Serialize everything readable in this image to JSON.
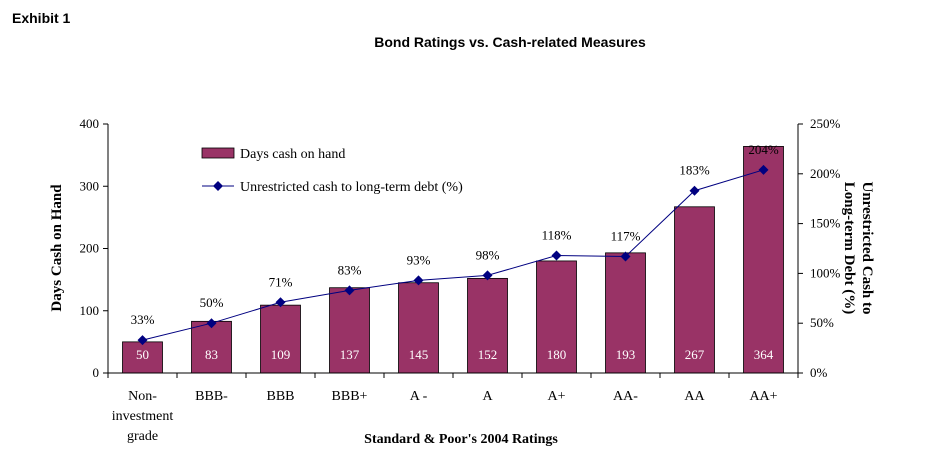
{
  "exhibit_label": "Exhibit 1",
  "chart_data": {
    "type": "bar",
    "title": "Bond Ratings vs. Cash-related Measures",
    "xlabel": "Standard & Poor's 2004 Ratings",
    "ylabel": "Days Cash on Hand",
    "y2label_line1": "Unrestricted Cash to",
    "y2label_line2": "Long-term Debt (%)",
    "categories": [
      [
        "Non-",
        "investment",
        "grade"
      ],
      [
        "BBB-"
      ],
      [
        "BBB"
      ],
      [
        "BBB+"
      ],
      [
        "A -"
      ],
      [
        "A"
      ],
      [
        "A+"
      ],
      [
        "AA-"
      ],
      [
        "AA"
      ],
      [
        "AA+"
      ]
    ],
    "ylim": [
      0,
      400
    ],
    "y2lim": [
      0,
      250
    ],
    "yticks": [
      "0",
      "100",
      "200",
      "300",
      "400"
    ],
    "y2ticks": [
      "0%",
      "50%",
      "100%",
      "150%",
      "200%",
      "250%"
    ],
    "series": [
      {
        "name": "Days cash on hand",
        "type": "bar",
        "axis": "left",
        "color": "#993366",
        "values": [
          50,
          83,
          109,
          137,
          145,
          152,
          180,
          193,
          267,
          364
        ],
        "labels": [
          "50",
          "83",
          "109",
          "137",
          "145",
          "152",
          "180",
          "193",
          "267",
          "364"
        ]
      },
      {
        "name": "Unrestricted cash to long-term debt (%)",
        "type": "line",
        "axis": "right",
        "color": "#000080",
        "values": [
          33,
          50,
          71,
          83,
          93,
          98,
          118,
          117,
          183,
          204
        ],
        "labels": [
          "33%",
          "50%",
          "71%",
          "83%",
          "93%",
          "98%",
          "118%",
          "117%",
          "183%",
          "204%"
        ]
      }
    ],
    "legend": "top-left",
    "grid": false
  }
}
